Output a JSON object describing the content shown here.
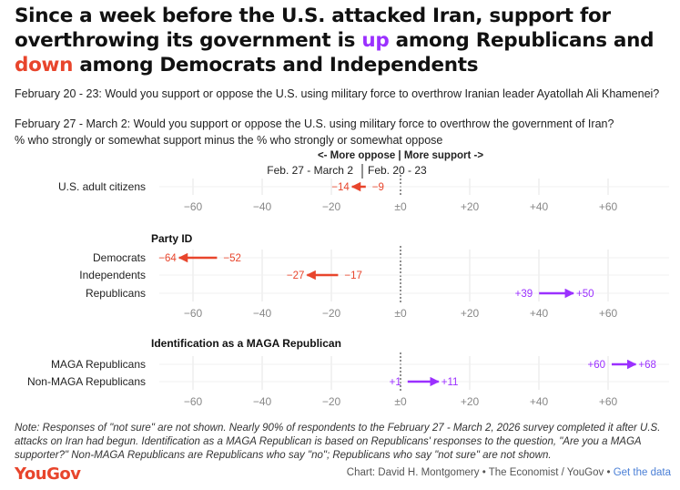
{
  "header": {
    "title_part1": "Since a week before the U.S. attacked Iran, support for overthrowing its government is ",
    "title_up": "up",
    "title_part2": " among Republicans and ",
    "title_down": "down",
    "title_part3": " among Democrats and Independents",
    "subtitle_1": "February 20 - 23: Would you support or oppose the U.S. using military force to overthrow Iranian leader Ayatollah Ali Khamenei?",
    "subtitle_2": "February 27 - March 2: Would you support or oppose the U.S. using military force to overthrow the government of Iran?",
    "subtitle_3": "% who strongly or somewhat support minus the % who strongly or somewhat oppose"
  },
  "chart_data": {
    "type": "arrow-dot",
    "direction_label": "<- More oppose | More support ->",
    "series_labels": {
      "later": "Feb. 27 - March 2",
      "earlier": "Feb. 20 - 23"
    },
    "xlim": [
      -70,
      75
    ],
    "ticks": [
      "−60",
      "−40",
      "−20",
      "±0",
      "+20",
      "+40",
      "+60"
    ],
    "tick_values": [
      -60,
      -40,
      -20,
      0,
      20,
      40,
      60
    ],
    "colors": {
      "up": "#9b30ff",
      "down": "#e8452c"
    },
    "panels": [
      {
        "title": "",
        "rows": [
          {
            "label": "U.S. adult citizens",
            "from": -9,
            "to": -14,
            "from_label": "−9",
            "to_label": "−14"
          }
        ]
      },
      {
        "title": "Party ID",
        "rows": [
          {
            "label": "Democrats",
            "from": -52,
            "to": -64,
            "from_label": "−52",
            "to_label": "−64"
          },
          {
            "label": "Independents",
            "from": -17,
            "to": -27,
            "from_label": "−17",
            "to_label": "−27"
          },
          {
            "label": "Republicans",
            "from": 39,
            "to": 50,
            "from_label": "+39",
            "to_label": "+50"
          }
        ]
      },
      {
        "title": "Identification as a MAGA Republican",
        "rows": [
          {
            "label": "MAGA Republicans",
            "from": 60,
            "to": 68,
            "from_label": "+60",
            "to_label": "+68"
          },
          {
            "label": "Non-MAGA Republicans",
            "from": 1,
            "to": 11,
            "from_label": "+1",
            "to_label": "+11"
          }
        ]
      }
    ]
  },
  "footer": {
    "note": "Note: Responses of \"not sure\" are not shown. Nearly 90% of respondents to the February 27 - March 2, 2026 survey completed it after U.S. attacks on Iran had begun. Identification as a MAGA Republican is based on Republicans' responses to the question, \"Are you a MAGA supporter?\" Non-MAGA Republicans are Republicans who say \"no\"; Republicans who say \"not sure\" are not shown.",
    "logo": "YouGov",
    "credit": "Chart: David H. Montgomery • The Economist / YouGov • ",
    "data_link": "Get the data"
  }
}
